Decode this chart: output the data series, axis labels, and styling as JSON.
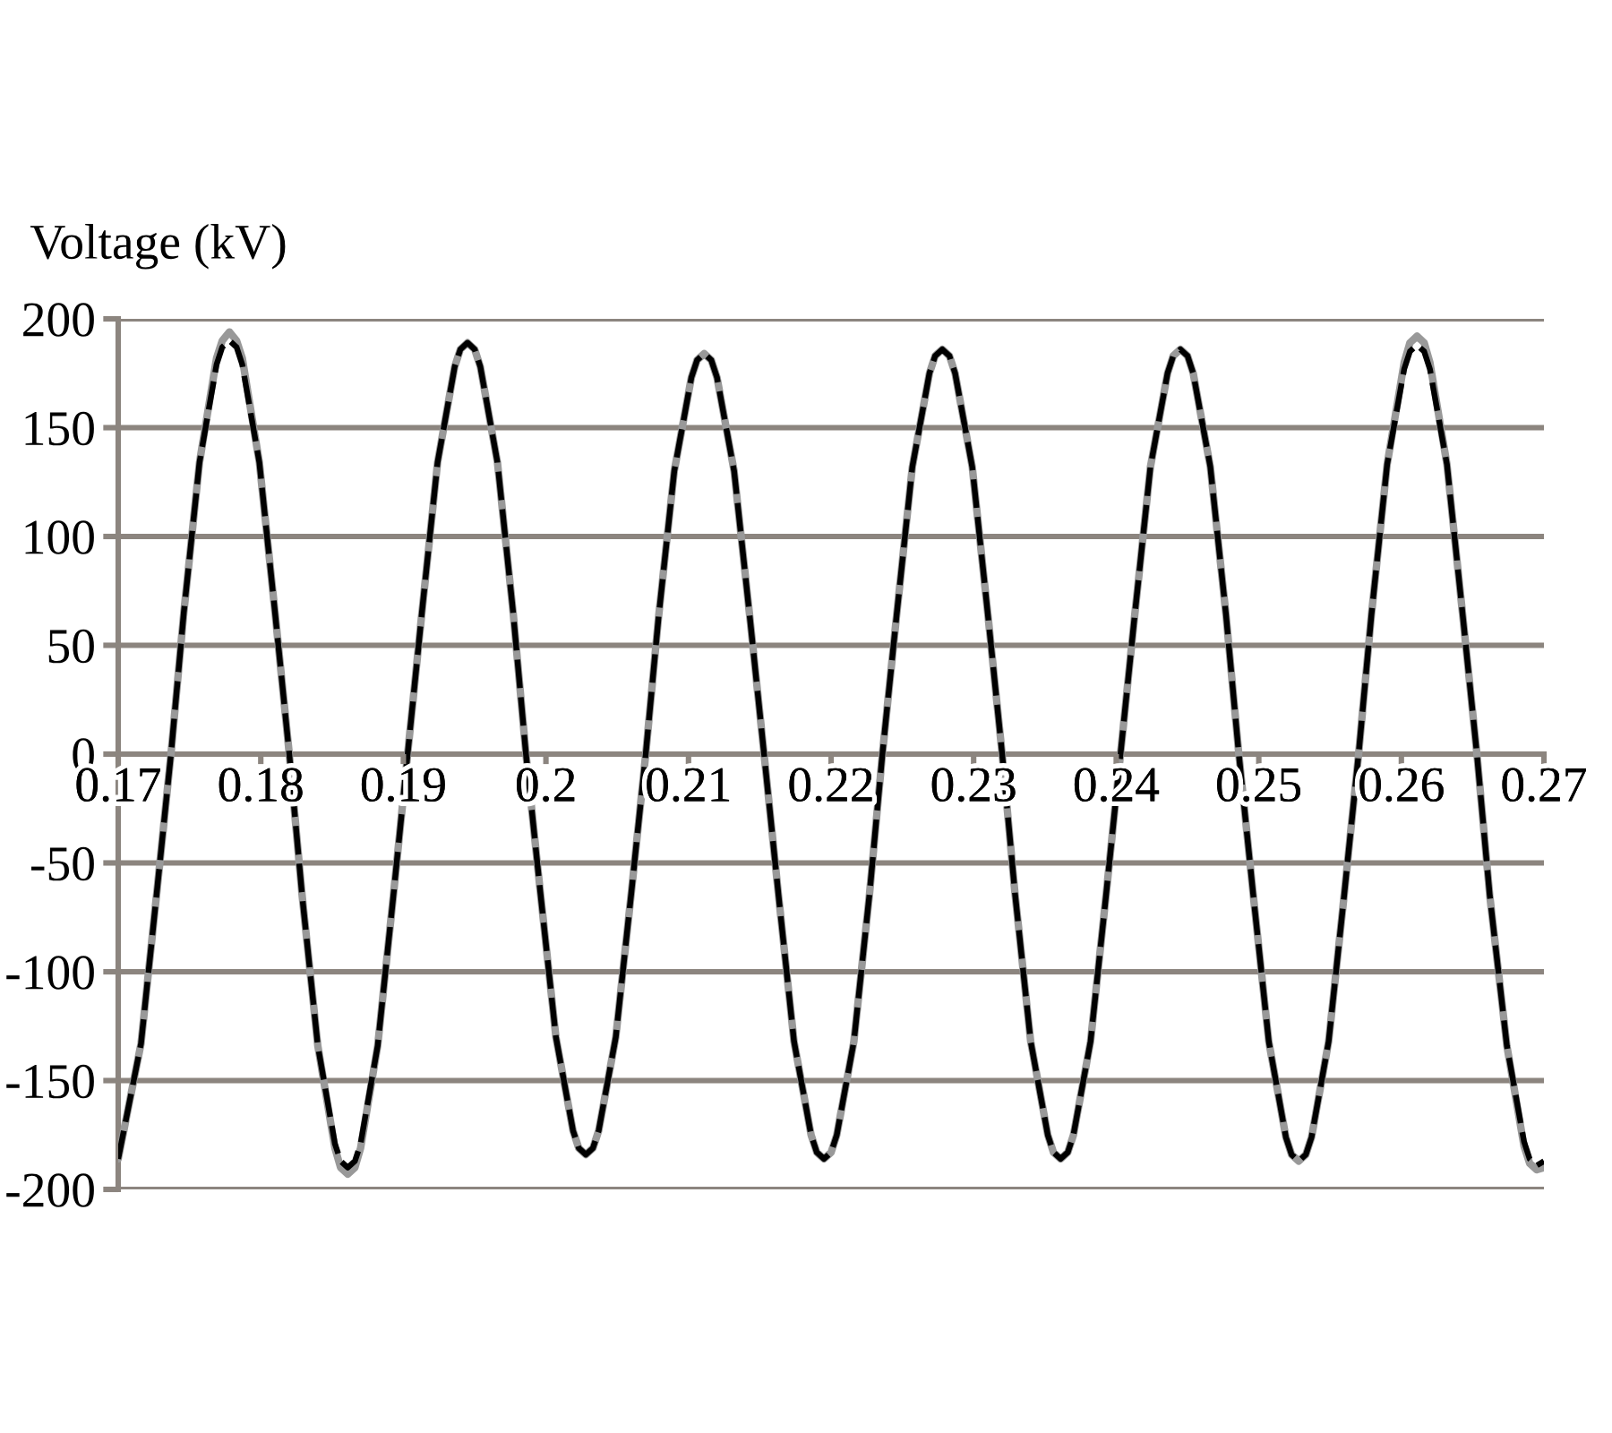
{
  "chart_data": {
    "type": "line",
    "ylabel": "Voltage (kV)",
    "x": [
      0.17,
      0.1716,
      0.1727,
      0.1737,
      0.1746,
      0.1757,
      0.1769,
      0.1773,
      0.1778,
      0.1783,
      0.1787,
      0.1799,
      0.181,
      0.182,
      0.1829,
      0.184,
      0.1852,
      0.1856,
      0.1861,
      0.1866,
      0.187,
      0.1882,
      0.1893,
      0.1903,
      0.1913,
      0.1924,
      0.1936,
      0.194,
      0.1945,
      0.195,
      0.1954,
      0.1966,
      0.1977,
      0.1986,
      0.1996,
      0.2007,
      0.2019,
      0.2023,
      0.2028,
      0.2033,
      0.2037,
      0.2049,
      0.206,
      0.207,
      0.2079,
      0.209,
      0.2102,
      0.2106,
      0.2111,
      0.2116,
      0.212,
      0.2132,
      0.2143,
      0.2153,
      0.2163,
      0.2174,
      0.2186,
      0.219,
      0.2195,
      0.22,
      0.2204,
      0.2216,
      0.2227,
      0.2236,
      0.2246,
      0.2257,
      0.2269,
      0.2273,
      0.2278,
      0.2283,
      0.2287,
      0.2299,
      0.231,
      0.232,
      0.2329,
      0.234,
      0.2352,
      0.2356,
      0.2361,
      0.2366,
      0.237,
      0.2382,
      0.2393,
      0.2403,
      0.2413,
      0.2424,
      0.2436,
      0.244,
      0.2445,
      0.245,
      0.2454,
      0.2466,
      0.2477,
      0.2486,
      0.2496,
      0.2507,
      0.2519,
      0.2523,
      0.2528,
      0.2533,
      0.2537,
      0.2549,
      0.256,
      0.257,
      0.2579,
      0.259,
      0.2602,
      0.2606,
      0.2611,
      0.2616,
      0.262,
      0.2632,
      0.2643,
      0.2653,
      0.2662,
      0.2674,
      0.2686,
      0.269,
      0.2695,
      0.27
    ],
    "series": [
      {
        "color": "#999999",
        "line_style": "solid",
        "values": [
          -186,
          -133,
          -64,
          0,
          65,
          134,
          182,
          190,
          194,
          190,
          182,
          134,
          65,
          0,
          -65,
          -134,
          -181,
          -190,
          -193,
          -190,
          -181,
          -134,
          -65,
          0,
          65,
          134,
          178,
          186,
          189,
          186,
          178,
          134,
          65,
          0,
          -63,
          -130,
          -173,
          -181,
          -184,
          -181,
          -173,
          -130,
          -63,
          0,
          63,
          130,
          173,
          181,
          184,
          181,
          173,
          130,
          63,
          0,
          -64,
          -132,
          -175,
          -183,
          -186,
          -183,
          -175,
          -132,
          -64,
          0,
          64,
          132,
          175,
          183,
          186,
          183,
          175,
          132,
          64,
          0,
          -64,
          -132,
          -175,
          -183,
          -186,
          -183,
          -175,
          -132,
          -64,
          0,
          64,
          132,
          175,
          183,
          186,
          183,
          175,
          132,
          64,
          0,
          -64,
          -132,
          -176,
          -184,
          -187,
          -184,
          -176,
          -132,
          -64,
          0,
          64,
          133,
          180,
          189,
          192,
          189,
          180,
          133,
          64,
          0,
          -65,
          -134,
          -180,
          -188,
          -191,
          -190
        ]
      },
      {
        "color": "#000000",
        "line_style": "dashed",
        "values": [
          -186,
          -133,
          -64,
          0,
          65,
          134,
          179,
          187,
          190,
          187,
          179,
          134,
          65,
          0,
          -65,
          -134,
          -179,
          -187,
          -190,
          -187,
          -179,
          -134,
          -65,
          0,
          65,
          134,
          178,
          186,
          189,
          186,
          178,
          134,
          65,
          0,
          -63,
          -130,
          -173,
          -181,
          -184,
          -181,
          -173,
          -130,
          -63,
          0,
          63,
          130,
          173,
          181,
          184,
          181,
          173,
          130,
          63,
          0,
          -64,
          -132,
          -175,
          -183,
          -186,
          -183,
          -175,
          -132,
          -64,
          0,
          64,
          132,
          175,
          183,
          186,
          183,
          175,
          132,
          64,
          0,
          -64,
          -132,
          -175,
          -183,
          -186,
          -183,
          -175,
          -132,
          -64,
          0,
          64,
          132,
          175,
          183,
          186,
          183,
          175,
          132,
          64,
          0,
          -64,
          -132,
          -176,
          -184,
          -187,
          -184,
          -176,
          -132,
          -64,
          0,
          64,
          133,
          177,
          185,
          188,
          185,
          177,
          133,
          64,
          0,
          -65,
          -134,
          -178,
          -186,
          -189,
          -187
        ]
      }
    ],
    "xlim": [
      0.17,
      0.27
    ],
    "xticks": [
      0.17,
      0.18,
      0.19,
      0.2,
      0.21,
      0.22,
      0.23,
      0.24,
      0.25,
      0.26,
      0.27
    ],
    "ylim": [
      -200,
      200
    ],
    "yticks": [
      -200,
      -150,
      -100,
      -50,
      0,
      50,
      100,
      150,
      200
    ],
    "grid": "y"
  }
}
